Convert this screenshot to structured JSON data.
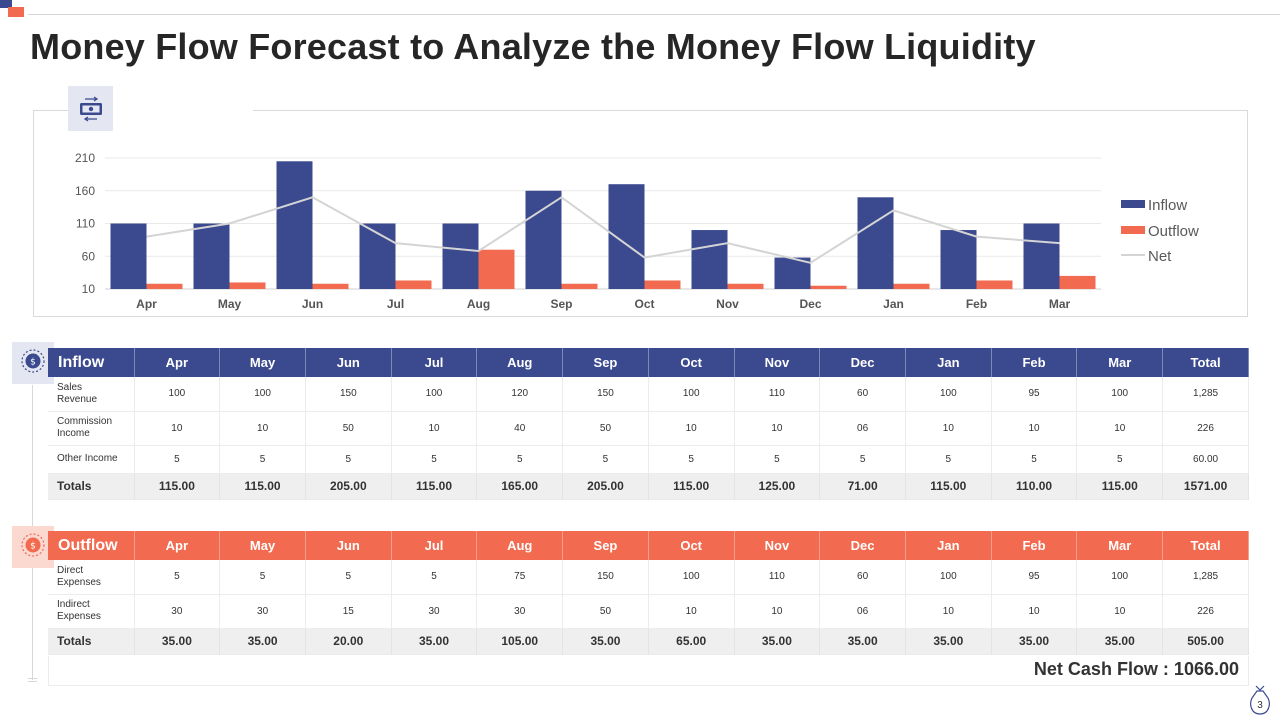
{
  "slide": {
    "title": "Money Flow Forecast to Analyze the Money Flow Liquidity",
    "page_number": "3",
    "net_cash_flow": "Net Cash Flow : 1066.00"
  },
  "icons": {
    "chart": "money-transfer-icon",
    "inflow": "coin-icon",
    "outflow": "dollar-coin-icon",
    "footer": "money-bag-icon"
  },
  "colors": {
    "inflow": "#3b4a8f",
    "outflow": "#f26a4f",
    "net": "#d4d4d4",
    "header_text": "#ffffff",
    "totals_bg": "#efefef"
  },
  "chart_data": {
    "type": "bar",
    "categories": [
      "Apr",
      "May",
      "Jun",
      "Jul",
      "Aug",
      "Sep",
      "Oct",
      "Nov",
      "Dec",
      "Jan",
      "Feb",
      "Mar"
    ],
    "series": [
      {
        "name": "Inflow",
        "type": "bar",
        "values": [
          110,
          110,
          205,
          110,
          110,
          160,
          170,
          100,
          58,
          150,
          100,
          110
        ]
      },
      {
        "name": "Outflow",
        "type": "bar",
        "values": [
          18,
          20,
          18,
          23,
          70,
          18,
          23,
          18,
          15,
          18,
          23,
          30
        ]
      },
      {
        "name": "Net",
        "type": "line",
        "values": [
          90,
          110,
          150,
          80,
          68,
          150,
          58,
          80,
          50,
          130,
          90,
          80
        ]
      }
    ],
    "ylim": [
      10,
      210
    ],
    "yticks": [
      10,
      60,
      110,
      160,
      210
    ],
    "grid": true,
    "legend_position": "right"
  },
  "inflow_table": {
    "title": "Inflow",
    "columns": [
      "Apr",
      "May",
      "Jun",
      "Jul",
      "Aug",
      "Sep",
      "Oct",
      "Nov",
      "Dec",
      "Jan",
      "Feb",
      "Mar",
      "Total"
    ],
    "rows": [
      {
        "label": [
          "Sales",
          "Revenue"
        ],
        "values": [
          "100",
          "100",
          "150",
          "100",
          "120",
          "150",
          "100",
          "110",
          "60",
          "100",
          "95",
          "100",
          "1,285"
        ]
      },
      {
        "label": [
          "Commission",
          "Income"
        ],
        "values": [
          "10",
          "10",
          "50",
          "10",
          "40",
          "50",
          "10",
          "10",
          "06",
          "10",
          "10",
          "10",
          "226"
        ]
      },
      {
        "label": [
          "Other Income"
        ],
        "values": [
          "5",
          "5",
          "5",
          "5",
          "5",
          "5",
          "5",
          "5",
          "5",
          "5",
          "5",
          "5",
          "60.00"
        ]
      }
    ],
    "totals": {
      "label": "Totals",
      "values": [
        "115.00",
        "115.00",
        "205.00",
        "115.00",
        "165.00",
        "205.00",
        "115.00",
        "125.00",
        "71.00",
        "115.00",
        "110.00",
        "115.00",
        "1571.00"
      ]
    }
  },
  "outflow_table": {
    "title": "Outflow",
    "columns": [
      "Apr",
      "May",
      "Jun",
      "Jul",
      "Aug",
      "Sep",
      "Oct",
      "Nov",
      "Dec",
      "Jan",
      "Feb",
      "Mar",
      "Total"
    ],
    "rows": [
      {
        "label": [
          "Direct",
          "Expenses"
        ],
        "values": [
          "5",
          "5",
          "5",
          "5",
          "75",
          "150",
          "100",
          "110",
          "60",
          "100",
          "95",
          "100",
          "1,285"
        ]
      },
      {
        "label": [
          "Indirect",
          "Expenses"
        ],
        "values": [
          "30",
          "30",
          "15",
          "30",
          "30",
          "50",
          "10",
          "10",
          "06",
          "10",
          "10",
          "10",
          "226"
        ]
      }
    ],
    "totals": {
      "label": "Totals",
      "values": [
        "35.00",
        "35.00",
        "20.00",
        "35.00",
        "105.00",
        "35.00",
        "65.00",
        "35.00",
        "35.00",
        "35.00",
        "35.00",
        "35.00",
        "505.00"
      ]
    }
  }
}
